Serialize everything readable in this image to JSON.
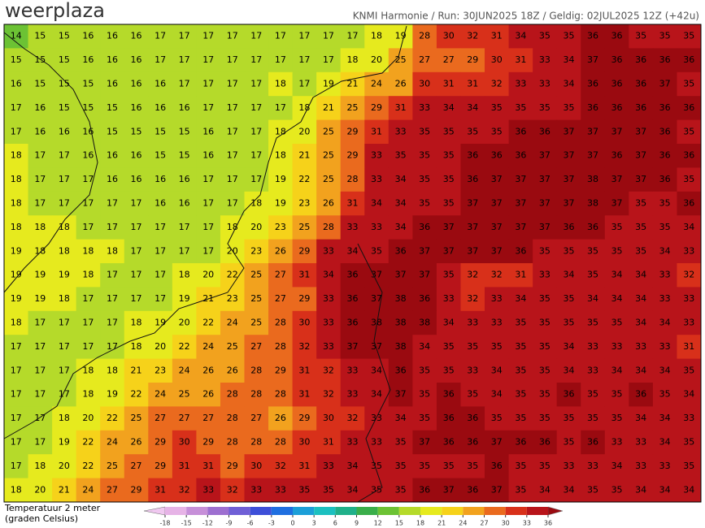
{
  "header": {
    "logo": "weerplaza",
    "info": "KNMI Harmonie / Run: 30JUN2025 18Z / Geldig: 02JUL2025 12Z (+42u)"
  },
  "map": {
    "grid": [
      [
        14,
        15,
        15,
        16,
        16,
        16,
        17,
        17,
        17,
        17,
        17,
        17,
        17,
        17,
        17,
        18,
        19,
        28,
        30,
        32,
        31,
        34,
        35,
        35,
        36,
        36,
        35,
        35,
        35
      ],
      [
        15,
        15,
        15,
        16,
        16,
        16,
        17,
        17,
        17,
        17,
        17,
        17,
        17,
        17,
        18,
        20,
        25,
        27,
        27,
        29,
        30,
        31,
        33,
        34,
        37,
        36,
        36,
        36,
        36
      ],
      [
        16,
        15,
        15,
        15,
        16,
        16,
        16,
        17,
        17,
        17,
        17,
        18,
        17,
        19,
        21,
        24,
        26,
        30,
        31,
        31,
        32,
        33,
        33,
        34,
        36,
        36,
        36,
        37,
        35
      ],
      [
        17,
        16,
        15,
        15,
        15,
        16,
        16,
        16,
        17,
        17,
        17,
        17,
        18,
        21,
        25,
        29,
        31,
        33,
        34,
        34,
        35,
        35,
        35,
        35,
        36,
        36,
        36,
        36,
        36
      ],
      [
        17,
        16,
        16,
        16,
        15,
        15,
        15,
        15,
        16,
        17,
        17,
        18,
        20,
        25,
        29,
        31,
        33,
        35,
        35,
        35,
        35,
        36,
        36,
        37,
        37,
        37,
        37,
        36,
        35
      ],
      [
        18,
        17,
        17,
        16,
        16,
        16,
        15,
        15,
        16,
        17,
        17,
        18,
        21,
        25,
        29,
        33,
        35,
        35,
        35,
        36,
        36,
        36,
        37,
        37,
        37,
        36,
        37,
        36,
        36
      ],
      [
        18,
        17,
        17,
        17,
        16,
        16,
        16,
        16,
        17,
        17,
        17,
        19,
        22,
        25,
        28,
        33,
        34,
        35,
        35,
        36,
        37,
        37,
        37,
        37,
        38,
        37,
        37,
        36,
        35
      ],
      [
        18,
        17,
        17,
        17,
        17,
        17,
        16,
        16,
        17,
        17,
        18,
        19,
        23,
        26,
        31,
        34,
        34,
        35,
        35,
        37,
        37,
        37,
        37,
        37,
        38,
        37,
        35,
        35,
        36
      ],
      [
        18,
        18,
        18,
        17,
        17,
        17,
        17,
        17,
        17,
        18,
        20,
        23,
        25,
        28,
        33,
        33,
        34,
        36,
        37,
        37,
        37,
        37,
        37,
        36,
        36,
        35,
        35,
        35,
        34
      ],
      [
        19,
        18,
        18,
        18,
        18,
        17,
        17,
        17,
        17,
        20,
        23,
        26,
        29,
        33,
        34,
        35,
        36,
        37,
        37,
        37,
        37,
        36,
        35,
        35,
        35,
        35,
        35,
        34,
        33
      ],
      [
        19,
        19,
        19,
        18,
        17,
        17,
        17,
        18,
        20,
        22,
        25,
        27,
        31,
        34,
        36,
        37,
        37,
        37,
        35,
        32,
        32,
        31,
        33,
        34,
        35,
        34,
        34,
        33,
        32
      ],
      [
        19,
        19,
        18,
        17,
        17,
        17,
        17,
        19,
        21,
        23,
        25,
        27,
        29,
        33,
        36,
        37,
        38,
        36,
        33,
        32,
        33,
        34,
        35,
        35,
        34,
        34,
        34,
        33,
        33
      ],
      [
        18,
        17,
        17,
        17,
        17,
        18,
        19,
        20,
        22,
        24,
        25,
        28,
        30,
        33,
        36,
        38,
        38,
        38,
        34,
        33,
        33,
        35,
        35,
        35,
        35,
        35,
        34,
        34,
        33
      ],
      [
        17,
        17,
        17,
        17,
        17,
        18,
        20,
        22,
        24,
        25,
        27,
        28,
        32,
        33,
        37,
        37,
        38,
        34,
        35,
        35,
        35,
        35,
        35,
        34,
        33,
        33,
        33,
        33,
        31
      ],
      [
        17,
        17,
        17,
        18,
        18,
        21,
        23,
        24,
        26,
        26,
        28,
        29,
        31,
        32,
        33,
        34,
        36,
        35,
        35,
        33,
        34,
        35,
        35,
        34,
        33,
        34,
        34,
        34,
        35
      ],
      [
        17,
        17,
        17,
        18,
        19,
        22,
        24,
        25,
        26,
        28,
        28,
        28,
        31,
        32,
        33,
        34,
        37,
        35,
        36,
        35,
        34,
        35,
        35,
        36,
        35,
        35,
        36,
        35,
        34
      ],
      [
        17,
        17,
        18,
        20,
        22,
        25,
        27,
        27,
        27,
        28,
        27,
        26,
        29,
        30,
        32,
        33,
        34,
        35,
        36,
        36,
        35,
        35,
        35,
        35,
        35,
        35,
        34,
        34,
        33
      ],
      [
        17,
        17,
        19,
        22,
        24,
        26,
        29,
        30,
        29,
        28,
        28,
        28,
        30,
        31,
        33,
        33,
        35,
        37,
        36,
        36,
        37,
        36,
        36,
        35,
        36,
        33,
        33,
        34,
        35
      ],
      [
        17,
        18,
        20,
        22,
        25,
        27,
        29,
        31,
        31,
        29,
        30,
        32,
        31,
        33,
        34,
        35,
        35,
        35,
        35,
        35,
        36,
        35,
        35,
        33,
        33,
        34,
        33,
        33,
        35
      ],
      [
        18,
        20,
        21,
        24,
        27,
        29,
        31,
        32,
        33,
        32,
        33,
        33,
        35,
        35,
        34,
        35,
        35,
        36,
        37,
        36,
        37,
        35,
        34,
        34,
        35,
        35,
        34,
        34,
        34
      ]
    ]
  },
  "legend": {
    "label_lines": [
      "Temperatuur 2 meter",
      "(graden Celsius)"
    ],
    "ticks": [
      -18,
      -15,
      -12,
      -9,
      -6,
      -3,
      0,
      3,
      6,
      9,
      12,
      15,
      18,
      21,
      24,
      27,
      30,
      33,
      36
    ],
    "colors": [
      "#e6b3e6",
      "#c68fd8",
      "#9d6fd0",
      "#6f5fd6",
      "#3d4fd8",
      "#1f6fe0",
      "#1c9fd8",
      "#1cc0c0",
      "#20b08a",
      "#3aae4a",
      "#6cc234",
      "#b5da2a",
      "#e6ea1e",
      "#f6d21a",
      "#f2a21e",
      "#ea6a1e",
      "#d8301a",
      "#b8141a"
    ],
    "under_color": "#f0c8f0",
    "over_color": "#9a0a10"
  }
}
